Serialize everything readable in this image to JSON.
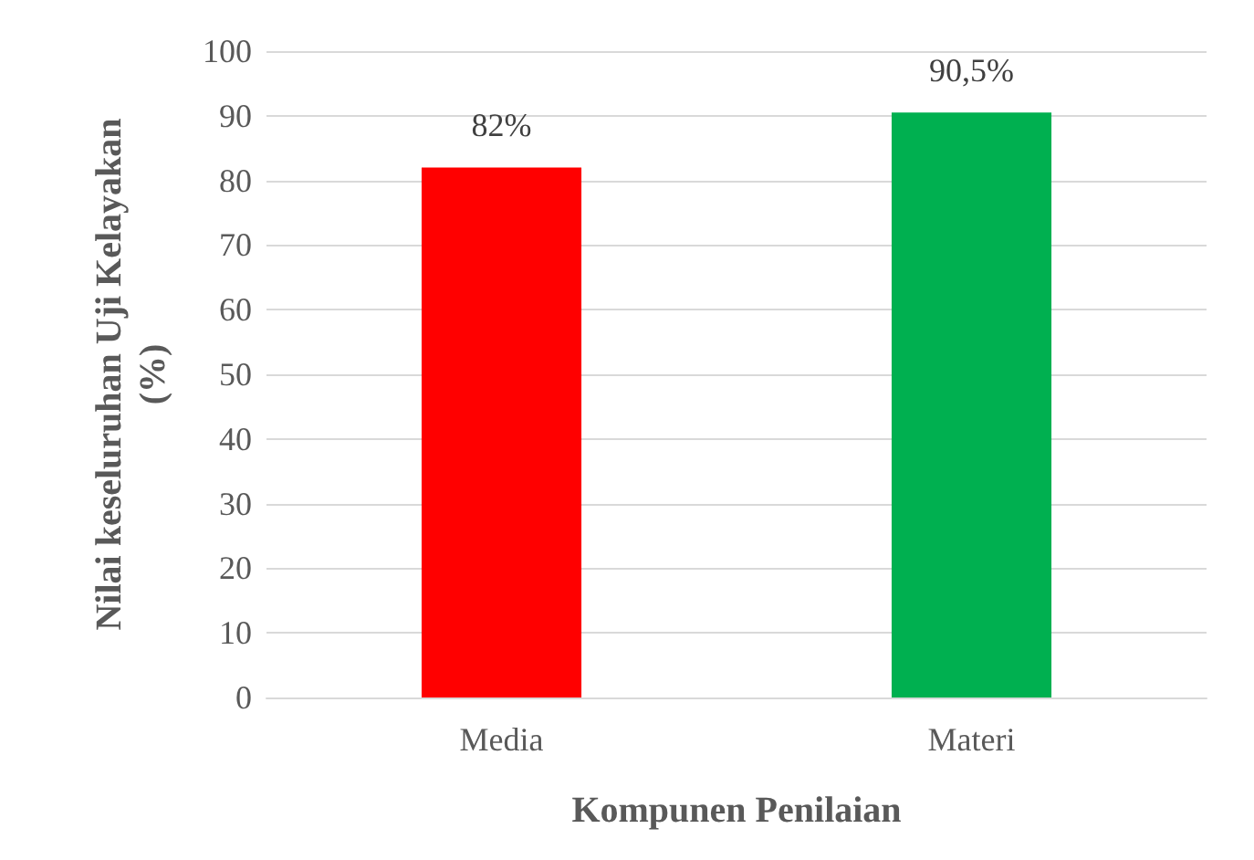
{
  "chart_data": {
    "type": "bar",
    "xlabel": "Kompunen Penilaian",
    "ylabel": "Nilai keseluruhan Uji Kelayakan\n(%)",
    "categories": [
      "Media",
      "Materi"
    ],
    "values": [
      82,
      90.5
    ],
    "colors": [
      "#ff0000",
      "#00b050"
    ],
    "value_labels": [
      "82%",
      "90,5%"
    ],
    "ylim": [
      0,
      100
    ],
    "yticks": [
      0,
      10,
      20,
      30,
      40,
      50,
      60,
      70,
      80,
      90,
      100
    ],
    "grid": "y"
  }
}
